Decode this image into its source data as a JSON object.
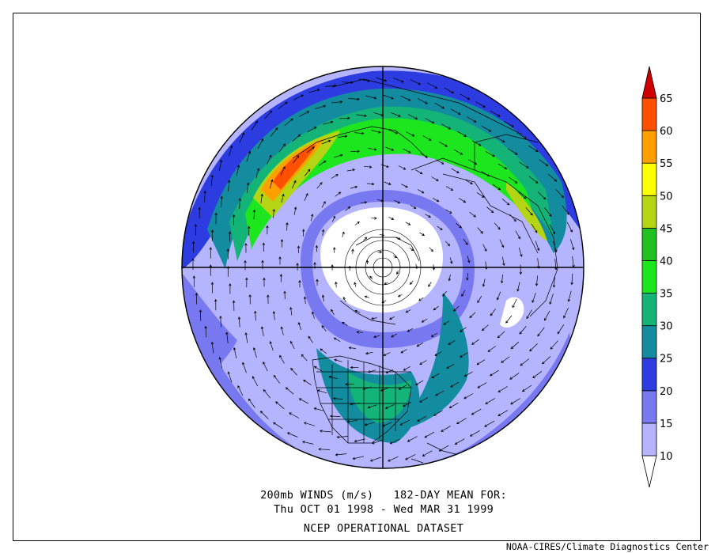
{
  "caption": {
    "line1": "200mb WINDS (m/s)   182-DAY MEAN FOR:",
    "line2": "Thu OCT 01 1998 - Wed MAR 31 1999",
    "line3": "NCEP OPERATIONAL DATASET"
  },
  "credit": "NOAA-CIRES/Climate Diagnostics Center",
  "colorbar": {
    "levels": [
      {
        "label": "10",
        "color": "#ffffff"
      },
      {
        "label": "15",
        "color": "#b4b4ff"
      },
      {
        "label": "20",
        "color": "#7878f0"
      },
      {
        "label": "25",
        "color": "#2c3ce0"
      },
      {
        "label": "30",
        "color": "#148ca0"
      },
      {
        "label": "35",
        "color": "#14b478"
      },
      {
        "label": "40",
        "color": "#1ee61e"
      },
      {
        "label": "45",
        "color": "#20c020"
      },
      {
        "label": "50",
        "color": "#b4d414"
      },
      {
        "label": "55",
        "color": "#ffff00"
      },
      {
        "label": "60",
        "color": "#ffa000"
      },
      {
        "label": "65",
        "color": "#ff5000"
      }
    ],
    "min_color": "#ffffff",
    "max_color": "#d00000"
  }
}
